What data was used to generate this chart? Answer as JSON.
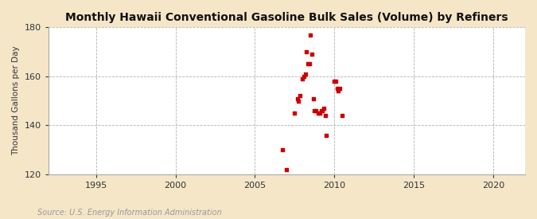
{
  "title": "Monthly Hawaii Conventional Gasoline Bulk Sales (Volume) by Refiners",
  "ylabel": "Thousand Gallons per Day",
  "source": "Source: U.S. Energy Information Administration",
  "background_color": "#f5e6c8",
  "plot_background_color": "#ffffff",
  "grid_color": "#aaaaaa",
  "point_color": "#cc0000",
  "xlim": [
    1992,
    2022
  ],
  "ylim": [
    120,
    180
  ],
  "yticks": [
    120,
    140,
    160,
    180
  ],
  "xticks": [
    1995,
    2000,
    2005,
    2010,
    2015,
    2020
  ],
  "data_points": [
    [
      2006.75,
      130
    ],
    [
      2007.0,
      122
    ],
    [
      2007.5,
      145
    ],
    [
      2007.67,
      151
    ],
    [
      2007.75,
      150
    ],
    [
      2007.83,
      152
    ],
    [
      2008.0,
      159
    ],
    [
      2008.08,
      160
    ],
    [
      2008.17,
      161
    ],
    [
      2008.25,
      170
    ],
    [
      2008.33,
      165
    ],
    [
      2008.42,
      165
    ],
    [
      2008.5,
      177
    ],
    [
      2008.58,
      169
    ],
    [
      2008.67,
      151
    ],
    [
      2008.75,
      146
    ],
    [
      2008.83,
      146
    ],
    [
      2009.0,
      145
    ],
    [
      2009.08,
      145
    ],
    [
      2009.17,
      146
    ],
    [
      2009.25,
      146
    ],
    [
      2009.33,
      147
    ],
    [
      2009.42,
      144
    ],
    [
      2009.5,
      136
    ],
    [
      2010.0,
      158
    ],
    [
      2010.08,
      158
    ],
    [
      2010.17,
      155
    ],
    [
      2010.25,
      154
    ],
    [
      2010.33,
      155
    ],
    [
      2010.5,
      144
    ]
  ]
}
